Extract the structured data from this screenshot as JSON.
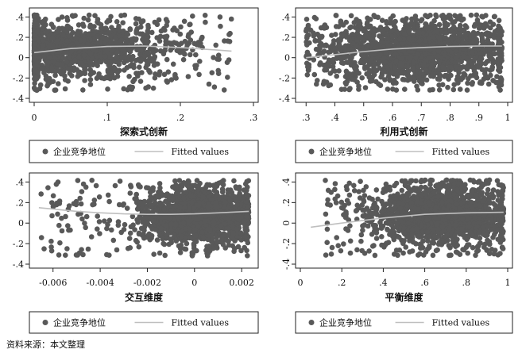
{
  "chart_data": [
    {
      "type": "scatter",
      "xlabel": "探索式创新",
      "xticks": [
        "0",
        ".1",
        ".2",
        ".3"
      ],
      "xlim": [
        0,
        0.3
      ],
      "yticks": [
        ".4",
        ".2",
        "0",
        "-.2",
        "-.4"
      ],
      "ylim": [
        -0.4,
        0.45
      ],
      "scatter_density": {
        "x_center": 0.03,
        "x_spread": 0.08,
        "x_max": 0.27,
        "y_center": 0.08,
        "y_spread": 0.13,
        "y_min": -0.32,
        "y_max": 0.42,
        "points": 1700
      },
      "series": [
        {
          "name": "企业竞争地位",
          "kind": "scatter",
          "color": "#595959"
        },
        {
          "name": "Fitted values",
          "kind": "line",
          "color": "#bfbfbf",
          "x": [
            0,
            0.05,
            0.1,
            0.15,
            0.2,
            0.25,
            0.27
          ],
          "y": [
            0.05,
            0.09,
            0.11,
            0.115,
            0.1,
            0.075,
            0.065
          ]
        }
      ],
      "legend": [
        "企业竞争地位",
        "Fitted values"
      ]
    },
    {
      "type": "scatter",
      "xlabel": "利用式创新",
      "xticks": [
        ".3",
        ".4",
        ".5",
        ".6",
        ".7",
        ".8",
        ".9",
        "1"
      ],
      "xlim": [
        0.28,
        1.0
      ],
      "yticks": [
        ".4",
        ".2",
        "0",
        "-.2",
        "-.4"
      ],
      "ylim": [
        -0.4,
        0.45
      ],
      "scatter_density": {
        "x_center": 0.68,
        "x_spread": 0.17,
        "x_min": 0.3,
        "x_max": 0.98,
        "y_center": 0.07,
        "y_spread": 0.15,
        "y_min": -0.32,
        "y_max": 0.42,
        "points": 1700
      },
      "series": [
        {
          "name": "企业竞争地位",
          "kind": "scatter",
          "color": "#595959"
        },
        {
          "name": "Fitted values",
          "kind": "line",
          "color": "#bfbfbf",
          "x": [
            0.3,
            0.4,
            0.5,
            0.6,
            0.7,
            0.8,
            0.9,
            0.98
          ],
          "y": [
            0.0,
            0.03,
            0.06,
            0.085,
            0.1,
            0.11,
            0.115,
            0.115
          ]
        }
      ],
      "legend": [
        "企业竞争地位",
        "Fitted values"
      ]
    },
    {
      "type": "scatter",
      "xlabel": "交互维度",
      "xticks": [
        "-0.006",
        "-0.004",
        "-0.002",
        "0",
        "0.002"
      ],
      "xlim": [
        -0.0068,
        0.0025
      ],
      "yticks": [
        ".4",
        ".2",
        "0",
        "-.2",
        "-.4"
      ],
      "ylim": [
        -0.4,
        0.45
      ],
      "scatter_density": {
        "x_center": 0.0002,
        "x_spread": 0.0012,
        "x_min": -0.0066,
        "x_max": 0.0023,
        "y_center": 0.08,
        "y_spread": 0.13,
        "y_min": -0.32,
        "y_max": 0.42,
        "points": 1700
      },
      "series": [
        {
          "name": "企业竞争地位",
          "kind": "scatter",
          "color": "#595959"
        },
        {
          "name": "Fitted values",
          "kind": "line",
          "color": "#bfbfbf",
          "x": [
            -0.0066,
            -0.005,
            -0.004,
            -0.003,
            -0.002,
            -0.001,
            0,
            0.001,
            0.0023
          ],
          "y": [
            0.15,
            0.115,
            0.1,
            0.09,
            0.085,
            0.085,
            0.09,
            0.1,
            0.115
          ]
        }
      ],
      "legend": [
        "企业竞争地位",
        "Fitted values"
      ]
    },
    {
      "type": "scatter",
      "xlabel": "平衡维度",
      "xticks": [
        "0",
        ".2",
        ".4",
        ".6",
        ".8",
        "1"
      ],
      "xlim": [
        0,
        1.0
      ],
      "yticks": [
        ".4",
        ".2",
        "0",
        "-.2",
        "-.4"
      ],
      "ylim": [
        -0.4,
        0.45
      ],
      "rotated_y_ticks": true,
      "scatter_density": {
        "x_center": 0.68,
        "x_spread": 0.17,
        "x_min": 0.12,
        "x_max": 0.98,
        "y_center": 0.08,
        "y_spread": 0.15,
        "y_min": -0.32,
        "y_max": 0.42,
        "points": 1700
      },
      "series": [
        {
          "name": "企业竞争地位",
          "kind": "scatter",
          "color": "#595959"
        },
        {
          "name": "Fitted values",
          "kind": "line",
          "color": "#bfbfbf",
          "x": [
            0.05,
            0.2,
            0.4,
            0.6,
            0.8,
            0.98
          ],
          "y": [
            -0.04,
            0.0,
            0.05,
            0.085,
            0.1,
            0.105
          ]
        }
      ],
      "legend": [
        "企业竞争地位",
        "Fitted values"
      ]
    }
  ],
  "source_note": "资料来源：本文整理"
}
